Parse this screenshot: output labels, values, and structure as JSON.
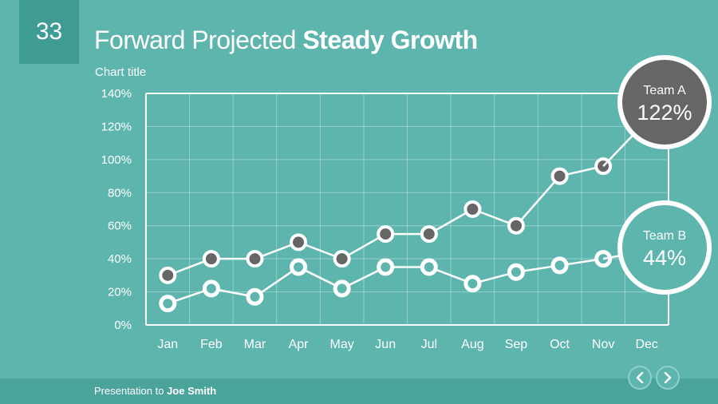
{
  "slide": {
    "number": "33",
    "title_regular": "Forward Projected",
    "title_bold": "Steady Growth"
  },
  "chart_data": {
    "type": "line",
    "title": "Chart title",
    "categories": [
      "Jan",
      "Feb",
      "Mar",
      "Apr",
      "May",
      "Jun",
      "Jul",
      "Aug",
      "Sep",
      "Oct",
      "Nov",
      "Dec"
    ],
    "y_ticks": [
      "0%",
      "20%",
      "40%",
      "60%",
      "80%",
      "100%",
      "120%",
      "140%"
    ],
    "ylim": [
      0,
      140
    ],
    "grid": true,
    "series": [
      {
        "name": "Team A",
        "values": [
          30,
          40,
          40,
          50,
          40,
          55,
          55,
          70,
          60,
          90,
          96,
          null
        ],
        "marker": "filled",
        "callout_value": "122%"
      },
      {
        "name": "Team B",
        "values": [
          13,
          22,
          17,
          35,
          22,
          35,
          35,
          25,
          32,
          36,
          40,
          null
        ],
        "marker": "hollow",
        "callout_value": "44%"
      }
    ]
  },
  "colors": {
    "background": "#5db5ae",
    "accent_dark": "#3f9c94",
    "footer": "#4aa49c",
    "line": "#ffffff",
    "marker_fill": "#666666",
    "callout_a_fill": "#666666",
    "callout_b_fill": "#5db5ae"
  },
  "footer": {
    "prefix": "Presentation to",
    "name": "Joe Smith"
  },
  "nav": {
    "prev_icon": "chevron-left-icon",
    "next_icon": "chevron-right-icon"
  }
}
